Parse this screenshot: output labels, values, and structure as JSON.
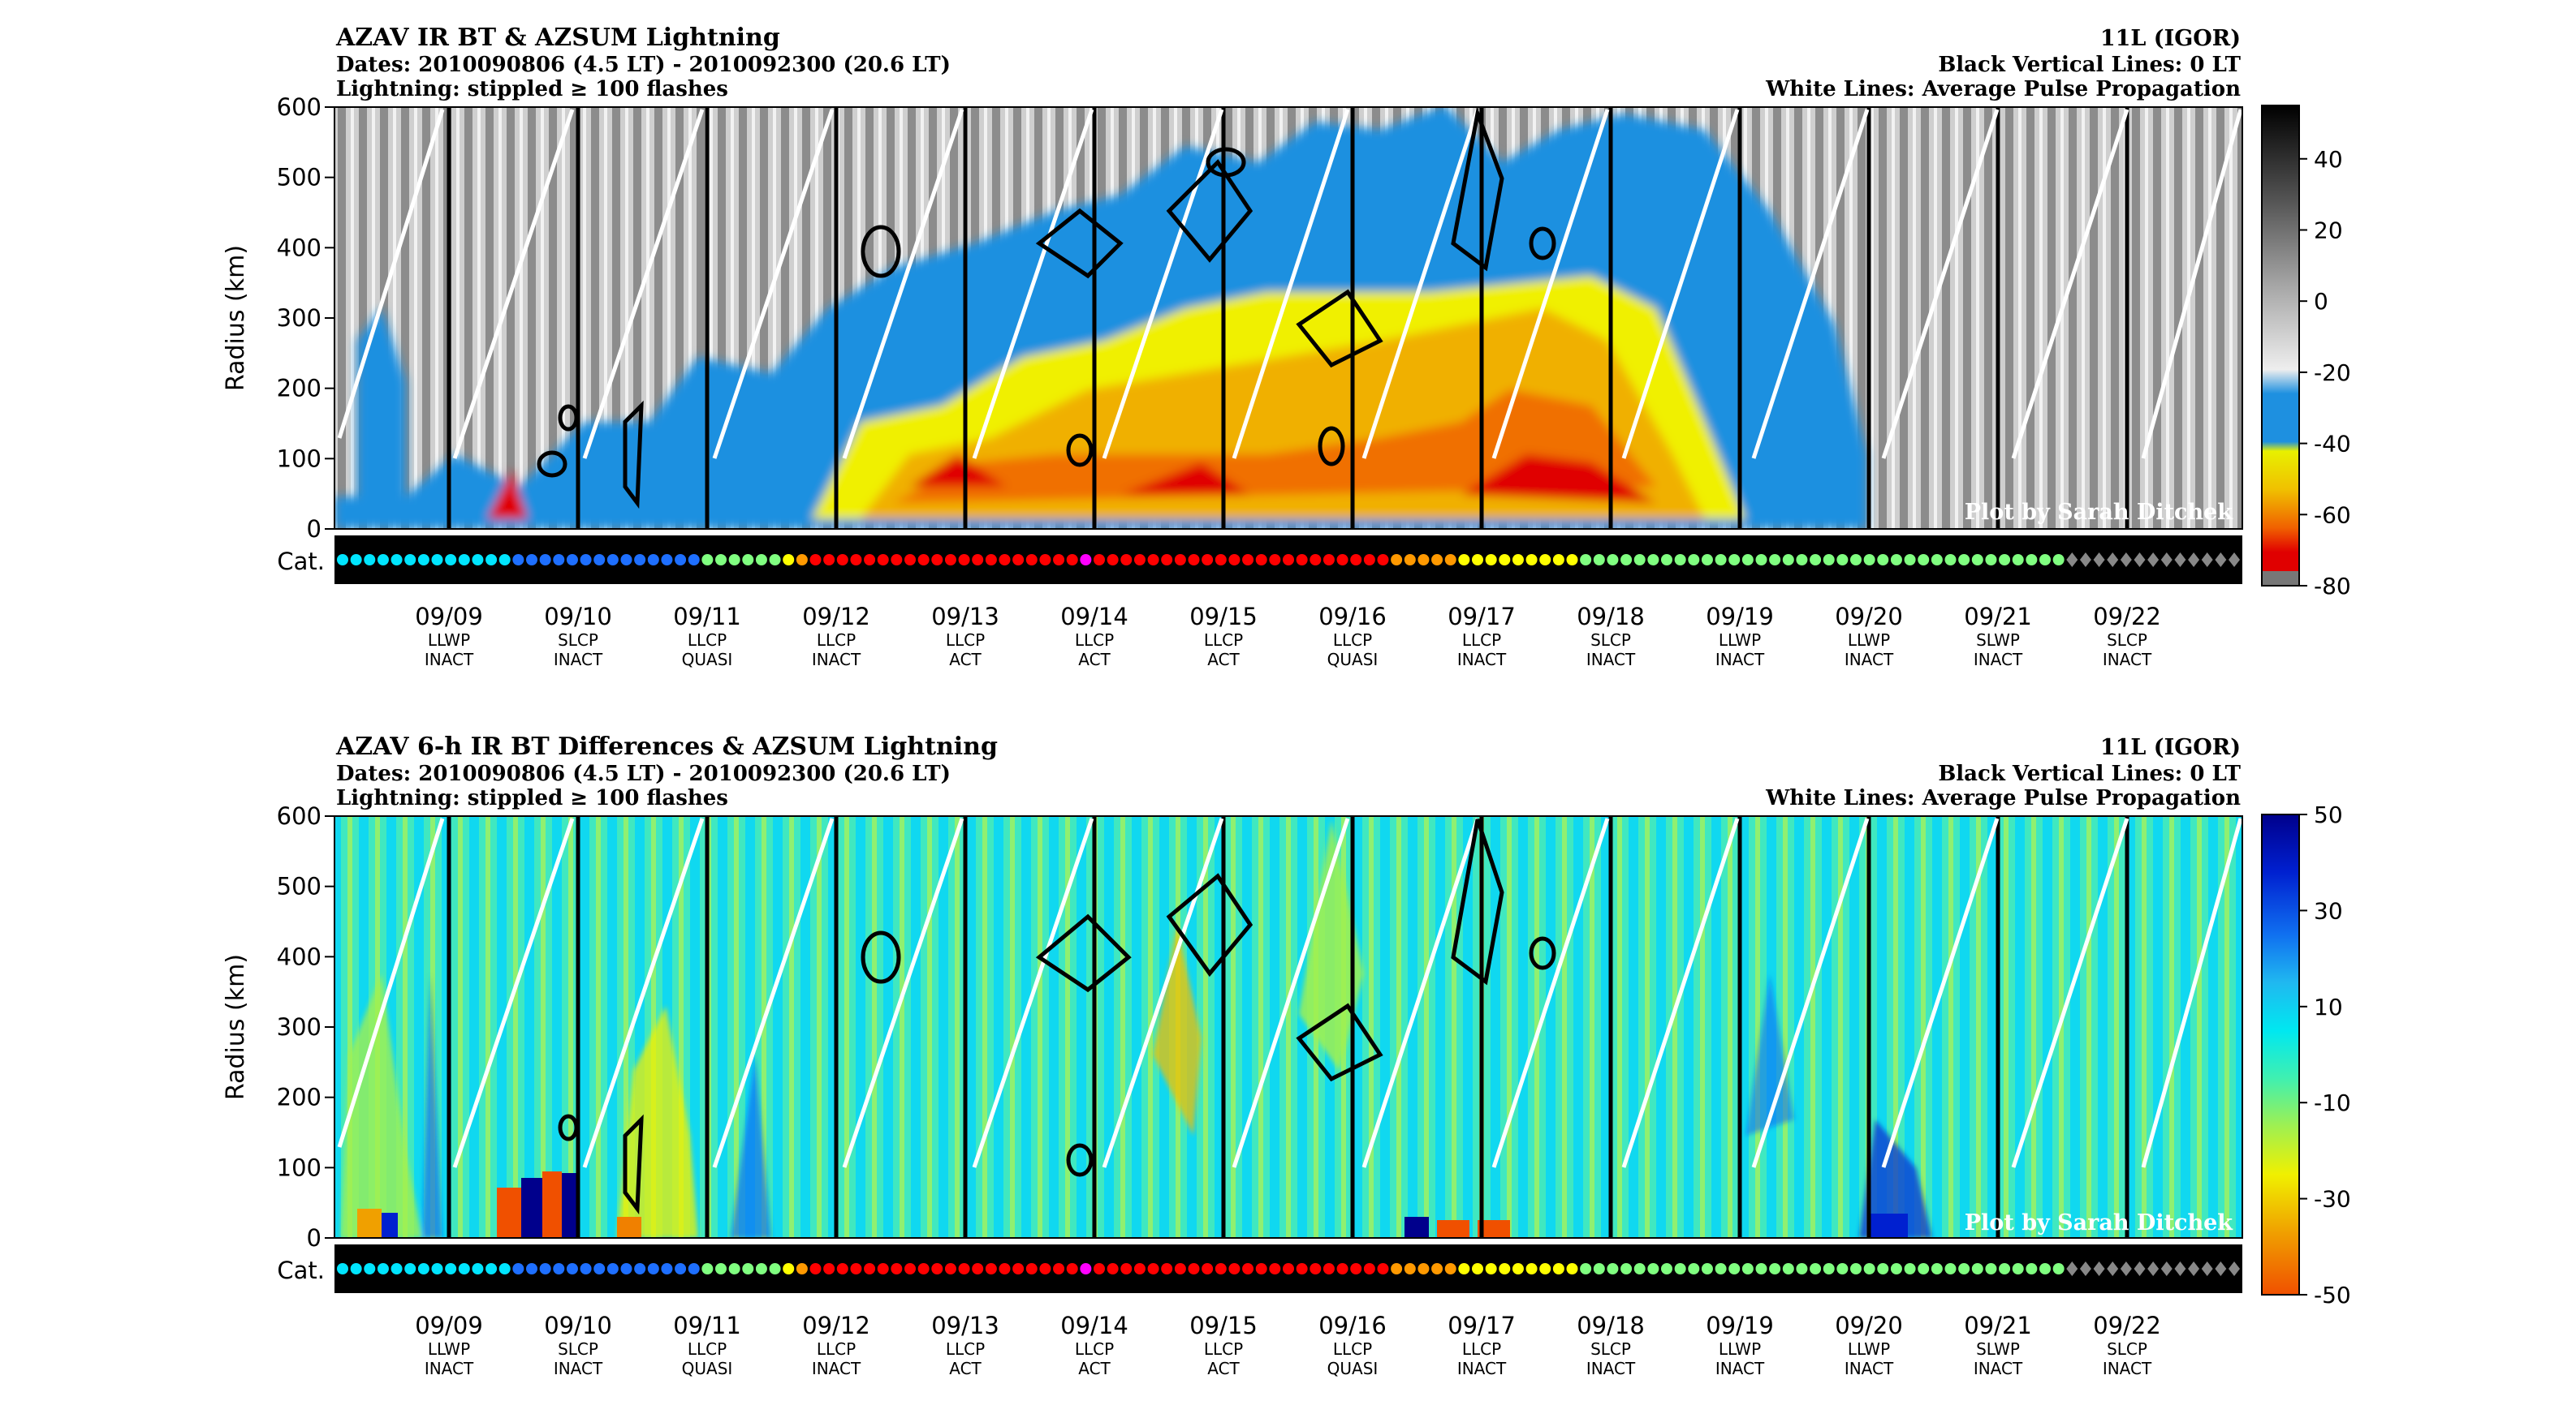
{
  "chart_data": [
    {
      "type": "heatmap",
      "title": "AZAV IR BT & AZSUM Lightning",
      "dates_line": "Dates: 2010090806 (4.5 LT) - 2010092300 (20.6 LT)",
      "lightning_line": "Lightning: stippled ≥ 100 flashes",
      "storm": "11L (IGOR)",
      "note_black": "Black Vertical Lines: 0 LT",
      "note_white": "White Lines: Average Pulse Propagation",
      "credit": "Plot by Sarah Ditchek",
      "ylabel": "Radius (km)",
      "ylim": [
        0,
        600
      ],
      "yticks": [
        "0",
        "100",
        "200",
        "300",
        "400",
        "500",
        "600"
      ],
      "category_label": "Cat.",
      "colorbar": {
        "range": [
          -80,
          55
        ],
        "ticks": [
          "40",
          "20",
          "0",
          "-20",
          "-40",
          "-60",
          "-80"
        ],
        "tick_values": [
          40,
          20,
          0,
          -20,
          -40,
          -60,
          -80
        ],
        "colors": [
          "#000000",
          "#555555",
          "#a0a0a0",
          "#e8e8e8",
          "#1e90e0",
          "#f7f700",
          "#f7b000",
          "#f06000",
          "#e00000"
        ]
      }
    },
    {
      "type": "heatmap",
      "title": "AZAV 6-h IR BT Differences & AZSUM Lightning",
      "dates_line": "Dates: 2010090806 (4.5 LT) - 2010092300 (20.6 LT)",
      "lightning_line": "Lightning: stippled ≥ 100 flashes",
      "storm": "11L (IGOR)",
      "note_black": "Black Vertical Lines: 0 LT",
      "note_white": "White Lines: Average Pulse Propagation",
      "credit": "Plot by Sarah Ditchek",
      "ylabel": "Radius (km)",
      "ylim": [
        0,
        600
      ],
      "yticks": [
        "0",
        "100",
        "200",
        "300",
        "400",
        "500",
        "600"
      ],
      "category_label": "Cat.",
      "colorbar": {
        "range": [
          -50,
          50
        ],
        "ticks": [
          "50",
          "30",
          "10",
          "-10",
          "-30",
          "-50"
        ],
        "tick_values": [
          50,
          30,
          10,
          -10,
          -30,
          -50
        ],
        "colors": [
          "#00008c",
          "#0020d0",
          "#1070f0",
          "#20b8f0",
          "#00e8f0",
          "#40f0b0",
          "#a0f050",
          "#f0f000",
          "#f0a000",
          "#f05000"
        ]
      }
    }
  ],
  "days": [
    {
      "date": "09/09",
      "pattern": "LLWP",
      "state": "INACT"
    },
    {
      "date": "09/10",
      "pattern": "SLCP",
      "state": "INACT"
    },
    {
      "date": "09/11",
      "pattern": "LLCP",
      "state": "QUASI"
    },
    {
      "date": "09/12",
      "pattern": "LLCP",
      "state": "INACT"
    },
    {
      "date": "09/13",
      "pattern": "LLCP",
      "state": "ACT"
    },
    {
      "date": "09/14",
      "pattern": "LLCP",
      "state": "ACT"
    },
    {
      "date": "09/15",
      "pattern": "LLCP",
      "state": "ACT"
    },
    {
      "date": "09/16",
      "pattern": "LLCP",
      "state": "QUASI"
    },
    {
      "date": "09/17",
      "pattern": "LLCP",
      "state": "INACT"
    },
    {
      "date": "09/18",
      "pattern": "SLCP",
      "state": "INACT"
    },
    {
      "date": "09/19",
      "pattern": "LLWP",
      "state": "INACT"
    },
    {
      "date": "09/20",
      "pattern": "LLWP",
      "state": "INACT"
    },
    {
      "date": "09/21",
      "pattern": "SLWP",
      "state": "INACT"
    },
    {
      "date": "09/22",
      "pattern": "SLCP",
      "state": "INACT"
    }
  ],
  "category_colors": {
    "TD": "#00e5ff",
    "TS": "#1e6fff",
    "C1": "#80ff80",
    "C2": "#ffff00",
    "C3": "#ff9900",
    "C4": "#ff0000",
    "C5": "#ff00ff",
    "EX": "#888888"
  },
  "category_sequence": "TD,TD,TD,TD,TD,TD,TD,TD,TD,TD,TD,TD,TD,TS,TS,TS,TS,TS,TS,TS,TS,TS,TS,TS,TS,TS,TS,C1,C1,C1,C1,C1,C1,C2,C3,C4,C4,C4,C4,C4,C4,C4,C4,C4,C4,C4,C4,C4,C4,C4,C4,C4,C4,C4,C4,C5,C4,C4,C4,C4,C4,C4,C4,C4,C4,C4,C4,C4,C4,C4,C4,C4,C4,C4,C4,C4,C4,C4,C3,C3,C3,C3,C3,C2,C2,C2,C2,C2,C2,C2,C2,C2,C1,C1,C1,C1,C1,C1,C1,C1,C1,C1,C1,C1,C1,C1,C1,C1,C1,C1,C1,C1,C1,C1,C1,C1,C1,C1,C1,C1,C1,C1,C1,C1,C1,C1,C1,C1,EX,EX,EX,EX,EX,EX,EX,EX,EX,EX,EX,EX,EX"
}
